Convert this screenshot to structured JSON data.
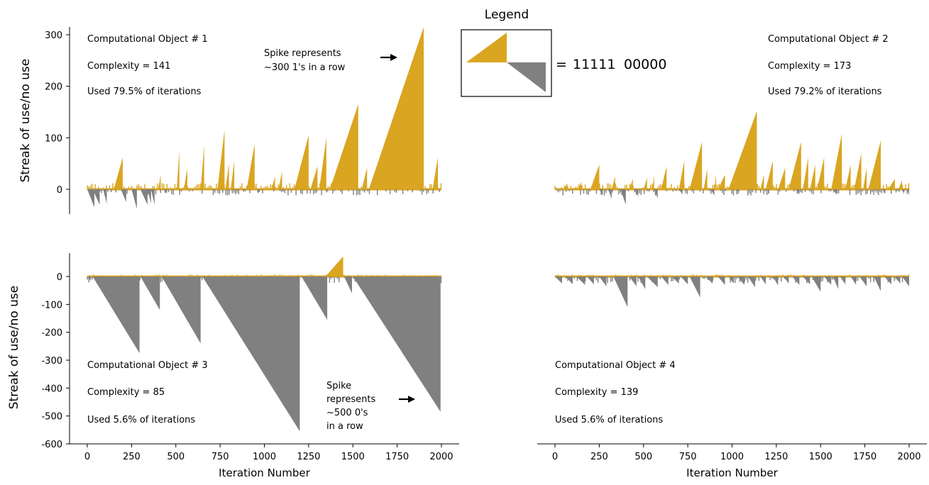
{
  "legend": {
    "title": "Legend",
    "equals": "=",
    "ones": "11111",
    "zeros": "00000"
  },
  "colors": {
    "use": "#DAA520",
    "no_use": "#808080"
  },
  "chart_data": [
    {
      "type": "area",
      "panel": "top-left",
      "ylabel": "Streak of use/no use",
      "xlabel": "",
      "xlim": [
        0,
        2000
      ],
      "ylim": [
        -50,
        300
      ],
      "yticks": [
        0,
        100,
        200,
        300
      ],
      "xticks": [],
      "annotations": [
        "Computational Object # 1",
        "Complexity = 141",
        "Used 79.5% of iterations"
      ],
      "callout": [
        "Spike represents",
        "~300 1's in a row"
      ],
      "use_spikes": [
        [
          150,
          200,
          62
        ],
        [
          400,
          415,
          28
        ],
        [
          505,
          520,
          75
        ],
        [
          545,
          565,
          40
        ],
        [
          640,
          660,
          85
        ],
        [
          735,
          775,
          115
        ],
        [
          780,
          800,
          50
        ],
        [
          810,
          830,
          55
        ],
        [
          900,
          945,
          88
        ],
        [
          1040,
          1060,
          25
        ],
        [
          1080,
          1100,
          35
        ],
        [
          1170,
          1250,
          105
        ],
        [
          1260,
          1300,
          45
        ],
        [
          1310,
          1350,
          100
        ],
        [
          1370,
          1530,
          165
        ],
        [
          1550,
          1580,
          42
        ],
        [
          1590,
          1900,
          315
        ],
        [
          1950,
          1980,
          62
        ]
      ],
      "nouse_spikes": [
        [
          0,
          40,
          -35
        ],
        [
          30,
          70,
          -30
        ],
        [
          90,
          110,
          -28
        ],
        [
          190,
          220,
          -25
        ],
        [
          250,
          280,
          -38
        ],
        [
          300,
          340,
          -30
        ],
        [
          340,
          360,
          -28
        ],
        [
          360,
          380,
          -30
        ],
        [
          430,
          450,
          -8
        ],
        [
          960,
          970,
          -8
        ],
        [
          1100,
          1110,
          -6
        ],
        [
          1350,
          1360,
          -6
        ],
        [
          1680,
          1690,
          -6
        ]
      ]
    },
    {
      "type": "area",
      "panel": "top-right",
      "ylabel": "",
      "xlabel": "",
      "xlim": [
        0,
        2000
      ],
      "ylim": [
        -50,
        300
      ],
      "yticks": [],
      "xticks": [],
      "annotations": [
        "Computational Object # 2",
        "Complexity = 173",
        "Used 79.2% of iterations"
      ],
      "use_spikes": [
        [
          50,
          70,
          12
        ],
        [
          130,
          150,
          15
        ],
        [
          200,
          250,
          48
        ],
        [
          320,
          340,
          25
        ],
        [
          420,
          440,
          20
        ],
        [
          500,
          520,
          22
        ],
        [
          550,
          560,
          28
        ],
        [
          600,
          630,
          45
        ],
        [
          700,
          730,
          55
        ],
        [
          760,
          830,
          92
        ],
        [
          840,
          860,
          40
        ],
        [
          900,
          910,
          30
        ],
        [
          920,
          960,
          28
        ],
        [
          980,
          1140,
          152
        ],
        [
          1160,
          1180,
          28
        ],
        [
          1190,
          1230,
          55
        ],
        [
          1260,
          1300,
          42
        ],
        [
          1320,
          1390,
          92
        ],
        [
          1400,
          1430,
          62
        ],
        [
          1440,
          1470,
          48
        ],
        [
          1480,
          1520,
          62
        ],
        [
          1560,
          1620,
          108
        ],
        [
          1640,
          1670,
          48
        ],
        [
          1690,
          1730,
          70
        ],
        [
          1740,
          1760,
          42
        ],
        [
          1770,
          1840,
          95
        ],
        [
          1880,
          1920,
          20
        ],
        [
          1940,
          1960,
          18
        ]
      ],
      "nouse_spikes": [
        [
          250,
          270,
          -12
        ],
        [
          300,
          320,
          -18
        ],
        [
          370,
          400,
          -30
        ],
        [
          450,
          470,
          -14
        ],
        [
          560,
          580,
          -18
        ],
        [
          700,
          720,
          -10
        ],
        [
          880,
          900,
          -12
        ],
        [
          1020,
          1040,
          -6
        ],
        [
          1200,
          1210,
          -8
        ],
        [
          1360,
          1380,
          -10
        ],
        [
          1570,
          1590,
          -10
        ],
        [
          1850,
          1860,
          -8
        ],
        [
          1960,
          1970,
          -10
        ],
        [
          1990,
          2000,
          -12
        ]
      ]
    },
    {
      "type": "area",
      "panel": "bottom-left",
      "ylabel": "Streak of use/no use",
      "xlabel": "Iteration Number",
      "xlim": [
        0,
        2000
      ],
      "ylim": [
        -600,
        75
      ],
      "yticks": [
        0,
        -100,
        -200,
        -300,
        -400,
        -500,
        -600
      ],
      "xticks": [
        0,
        250,
        500,
        750,
        1000,
        1250,
        1500,
        1750,
        2000
      ],
      "annotations": [
        "Computational Object # 3",
        "Complexity = 85",
        "Used 5.6% of iterations"
      ],
      "callout": [
        "Spike",
        "represents",
        "~500 0's",
        "in a row"
      ],
      "use_spikes": [
        [
          5,
          20,
          5
        ],
        [
          1345,
          1445,
          72
        ]
      ],
      "nouse_spikes": [
        [
          0,
          20,
          -15
        ],
        [
          30,
          295,
          -275
        ],
        [
          300,
          410,
          -120
        ],
        [
          420,
          640,
          -240
        ],
        [
          650,
          1200,
          -555
        ],
        [
          1210,
          1355,
          -155
        ],
        [
          1450,
          1495,
          -60
        ],
        [
          1500,
          1995,
          -485
        ]
      ]
    },
    {
      "type": "area",
      "panel": "bottom-right",
      "ylabel": "",
      "xlabel": "Iteration Number",
      "xlim": [
        0,
        2000
      ],
      "ylim": [
        -600,
        75
      ],
      "yticks": [],
      "xticks": [
        0,
        250,
        500,
        750,
        1000,
        1250,
        1500,
        1750,
        2000
      ],
      "annotations": [
        "Computational Object # 4",
        "Complexity = 139",
        "Used 5.6% of iterations"
      ],
      "use_spikes": [
        [
          220,
          240,
          3
        ],
        [
          280,
          300,
          4
        ],
        [
          1000,
          1010,
          3
        ],
        [
          1300,
          1310,
          3
        ],
        [
          1430,
          1440,
          3
        ],
        [
          1790,
          1800,
          3
        ]
      ],
      "nouse_spikes": [
        [
          0,
          40,
          -25
        ],
        [
          60,
          100,
          -28
        ],
        [
          120,
          170,
          -30
        ],
        [
          180,
          220,
          -28
        ],
        [
          250,
          290,
          -35
        ],
        [
          330,
          410,
          -110
        ],
        [
          420,
          460,
          -35
        ],
        [
          470,
          510,
          -45
        ],
        [
          520,
          580,
          -38
        ],
        [
          600,
          640,
          -30
        ],
        [
          660,
          700,
          -25
        ],
        [
          710,
          750,
          -28
        ],
        [
          760,
          820,
          -75
        ],
        [
          850,
          890,
          -25
        ],
        [
          920,
          960,
          -30
        ],
        [
          980,
          1010,
          -25
        ],
        [
          1030,
          1070,
          -30
        ],
        [
          1090,
          1130,
          -38
        ],
        [
          1160,
          1190,
          -28
        ],
        [
          1230,
          1260,
          -32
        ],
        [
          1290,
          1320,
          -25
        ],
        [
          1340,
          1380,
          -30
        ],
        [
          1400,
          1440,
          -28
        ],
        [
          1450,
          1500,
          -55
        ],
        [
          1520,
          1560,
          -30
        ],
        [
          1570,
          1600,
          -45
        ],
        [
          1610,
          1640,
          -28
        ],
        [
          1670,
          1700,
          -30
        ],
        [
          1720,
          1760,
          -35
        ],
        [
          1800,
          1840,
          -52
        ],
        [
          1860,
          1900,
          -28
        ],
        [
          1920,
          1950,
          -25
        ],
        [
          1960,
          2000,
          -35
        ]
      ]
    }
  ]
}
